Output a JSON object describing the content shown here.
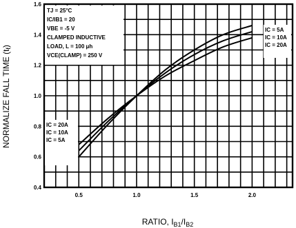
{
  "chart_data": {
    "type": "line",
    "title": "",
    "xlabel": "RATIO, I",
    "xlabel_sub1": "B1",
    "xlabel_mid": "/I",
    "xlabel_sub2": "B2",
    "ylabel": "NORMALIZE FALL TIME (t",
    "ylabel_sub": "f",
    "ylabel_end": ")",
    "xlim": [
      0.2,
      2.35
    ],
    "ylim": [
      0.4,
      1.6
    ],
    "x_ticks": [
      0.5,
      1.0,
      1.5,
      2.0
    ],
    "x_tick_labels": [
      "0.5",
      "1.0",
      "1.5",
      "2.0"
    ],
    "y_ticks": [
      0.4,
      0.6,
      0.8,
      1.0,
      1.2,
      1.4,
      1.6
    ],
    "y_tick_labels": [
      "0.4",
      "0.6",
      "0.8",
      "1.0",
      "1.2",
      "1.4",
      "1.6"
    ],
    "grid": true,
    "conditions": [
      "TJ = 25°C",
      "IC/IB1 = 20",
      "VBE = -5 V",
      "CLAMPED INDUCTIVE",
      "LOAD, L = 100 μh",
      "VCE(CLAMP) = 250 V"
    ],
    "series": [
      {
        "name": "IC = 5A",
        "x": [
          0.5,
          0.75,
          1.0,
          1.25,
          1.5,
          1.75,
          2.0
        ],
        "values": [
          0.6,
          0.81,
          1.0,
          1.17,
          1.3,
          1.4,
          1.46
        ]
      },
      {
        "name": "IC = 10A",
        "x": [
          0.5,
          0.75,
          1.0,
          1.25,
          1.5,
          1.75,
          2.0
        ],
        "values": [
          0.64,
          0.83,
          1.0,
          1.15,
          1.27,
          1.36,
          1.42
        ]
      },
      {
        "name": "IC = 20A",
        "x": [
          0.5,
          0.75,
          1.0,
          1.25,
          1.5,
          1.75,
          2.0
        ],
        "values": [
          0.68,
          0.85,
          1.0,
          1.13,
          1.23,
          1.32,
          1.38
        ]
      }
    ],
    "left_labels": [
      "IC = 20A",
      "IC = 10A",
      "IC = 5A"
    ],
    "right_labels": [
      "IC = 5A",
      "IC = 10A",
      "IC = 20A"
    ]
  }
}
